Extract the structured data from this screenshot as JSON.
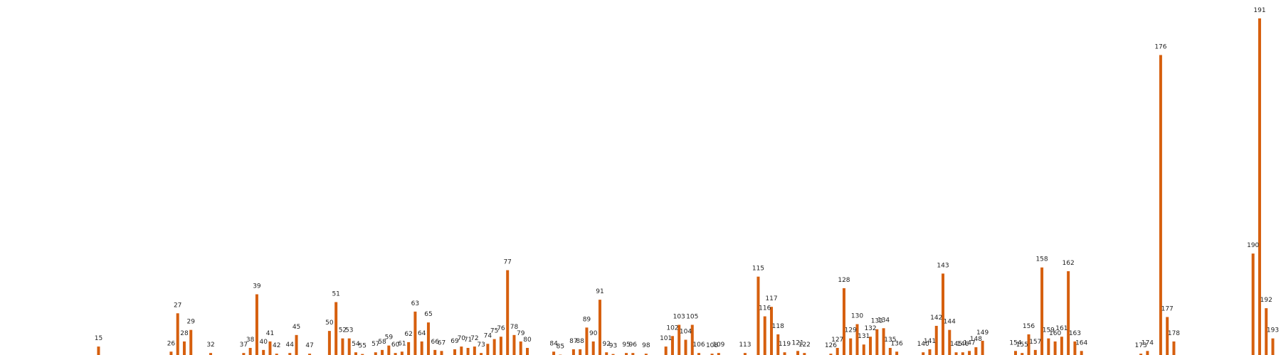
{
  "chart_data": {
    "type": "bar",
    "title": "",
    "xlabel": "",
    "ylabel": "",
    "color": "#d65f0e",
    "grid": false,
    "x_range": [
      0,
      200
    ],
    "ylim": [
      0,
      100
    ],
    "bars": [
      {
        "x": 15,
        "label": "15",
        "value": 2.7
      },
      {
        "x": 26,
        "label": "26",
        "value": 1.2
      },
      {
        "x": 27,
        "label": "27",
        "value": 12.5
      },
      {
        "x": 28,
        "label": "28",
        "value": 4.2
      },
      {
        "x": 29,
        "label": "29",
        "value": 7.6
      },
      {
        "x": 32,
        "label": "32",
        "value": 0.8
      },
      {
        "x": 37,
        "label": "37",
        "value": 0.8
      },
      {
        "x": 38,
        "label": "38",
        "value": 2.3
      },
      {
        "x": 39,
        "label": "39",
        "value": 18.1
      },
      {
        "x": 40,
        "label": "40",
        "value": 1.7
      },
      {
        "x": 41,
        "label": "41",
        "value": 4.2
      },
      {
        "x": 42,
        "label": "42",
        "value": 0.6
      },
      {
        "x": 44,
        "label": "44",
        "value": 0.8
      },
      {
        "x": 45,
        "label": "45",
        "value": 6.1
      },
      {
        "x": 47,
        "label": "47",
        "value": 0.6
      },
      {
        "x": 50,
        "label": "50",
        "value": 7.3
      },
      {
        "x": 51,
        "label": "51",
        "value": 15.8
      },
      {
        "x": 52,
        "label": "52",
        "value": 5.1
      },
      {
        "x": 53,
        "label": "53",
        "value": 5.1
      },
      {
        "x": 54,
        "label": "54",
        "value": 1.0
      },
      {
        "x": 55,
        "label": "55",
        "value": 0.5
      },
      {
        "x": 57,
        "label": "57",
        "value": 1.0
      },
      {
        "x": 58,
        "label": "58",
        "value": 1.7
      },
      {
        "x": 59,
        "label": "59",
        "value": 3.0
      },
      {
        "x": 60,
        "label": "60",
        "value": 0.8
      },
      {
        "x": 61,
        "label": "61",
        "value": 1.2
      },
      {
        "x": 62,
        "label": "62",
        "value": 4.0
      },
      {
        "x": 63,
        "label": "63",
        "value": 13.0
      },
      {
        "x": 64,
        "label": "64",
        "value": 4.2
      },
      {
        "x": 65,
        "label": "65",
        "value": 9.8
      },
      {
        "x": 66,
        "label": "66",
        "value": 1.7
      },
      {
        "x": 67,
        "label": "67",
        "value": 1.4
      },
      {
        "x": 69,
        "label": "69",
        "value": 1.9
      },
      {
        "x": 70,
        "label": "70",
        "value": 2.7
      },
      {
        "x": 71,
        "label": "71",
        "value": 2.3
      },
      {
        "x": 72,
        "label": "72",
        "value": 2.7
      },
      {
        "x": 73,
        "label": "73",
        "value": 0.8
      },
      {
        "x": 74,
        "label": "74",
        "value": 3.5
      },
      {
        "x": 75,
        "label": "75",
        "value": 4.9
      },
      {
        "x": 76,
        "label": "76",
        "value": 5.6
      },
      {
        "x": 77,
        "label": "77",
        "value": 25.2
      },
      {
        "x": 78,
        "label": "78",
        "value": 6.1
      },
      {
        "x": 79,
        "label": "79",
        "value": 4.2
      },
      {
        "x": 80,
        "label": "80",
        "value": 2.3
      },
      {
        "x": 84,
        "label": "84",
        "value": 1.2
      },
      {
        "x": 85,
        "label": "85",
        "value": 0.3
      },
      {
        "x": 87,
        "label": "87",
        "value": 1.9
      },
      {
        "x": 88,
        "label": "88",
        "value": 1.9
      },
      {
        "x": 89,
        "label": "89",
        "value": 8.3
      },
      {
        "x": 90,
        "label": "90",
        "value": 4.2
      },
      {
        "x": 91,
        "label": "91",
        "value": 16.5
      },
      {
        "x": 92,
        "label": "92",
        "value": 1.0
      },
      {
        "x": 93,
        "label": "93",
        "value": 0.5
      },
      {
        "x": 95,
        "label": "95",
        "value": 0.8
      },
      {
        "x": 96,
        "label": "96",
        "value": 0.8
      },
      {
        "x": 98,
        "label": "98",
        "value": 0.6
      },
      {
        "x": 101,
        "label": "101",
        "value": 2.7
      },
      {
        "x": 102,
        "label": "102",
        "value": 5.8
      },
      {
        "x": 103,
        "label": "103",
        "value": 9.1
      },
      {
        "x": 104,
        "label": "104",
        "value": 4.7
      },
      {
        "x": 105,
        "label": "105",
        "value": 9.1
      },
      {
        "x": 106,
        "label": "106",
        "value": 0.8
      },
      {
        "x": 108,
        "label": "108",
        "value": 0.6
      },
      {
        "x": 109,
        "label": "109",
        "value": 0.8
      },
      {
        "x": 113,
        "label": "113",
        "value": 0.8
      },
      {
        "x": 115,
        "label": "115",
        "value": 23.3
      },
      {
        "x": 116,
        "label": "116",
        "value": 11.6
      },
      {
        "x": 117,
        "label": "117",
        "value": 14.4
      },
      {
        "x": 118,
        "label": "118",
        "value": 6.3
      },
      {
        "x": 119,
        "label": "119",
        "value": 1.0
      },
      {
        "x": 121,
        "label": "121",
        "value": 1.4
      },
      {
        "x": 122,
        "label": "122",
        "value": 0.8
      },
      {
        "x": 126,
        "label": "126",
        "value": 0.6
      },
      {
        "x": 127,
        "label": "127",
        "value": 2.3
      },
      {
        "x": 128,
        "label": "128",
        "value": 19.9
      },
      {
        "x": 129,
        "label": "129",
        "value": 5.1
      },
      {
        "x": 130,
        "label": "130",
        "value": 9.3
      },
      {
        "x": 131,
        "label": "131",
        "value": 3.3
      },
      {
        "x": 132,
        "label": "132",
        "value": 5.6
      },
      {
        "x": 133,
        "label": "133",
        "value": 7.8
      },
      {
        "x": 134,
        "label": "134",
        "value": 8.1
      },
      {
        "x": 135,
        "label": "135",
        "value": 2.3
      },
      {
        "x": 136,
        "label": "136",
        "value": 1.2
      },
      {
        "x": 140,
        "label": "140",
        "value": 1.0
      },
      {
        "x": 141,
        "label": "141",
        "value": 1.9
      },
      {
        "x": 142,
        "label": "142",
        "value": 8.8
      },
      {
        "x": 143,
        "label": "143",
        "value": 24.2
      },
      {
        "x": 144,
        "label": "144",
        "value": 7.6
      },
      {
        "x": 145,
        "label": "145",
        "value": 1.0
      },
      {
        "x": 146,
        "label": "146",
        "value": 1.0
      },
      {
        "x": 147,
        "label": "147",
        "value": 1.4
      },
      {
        "x": 148,
        "label": "148",
        "value": 2.5
      },
      {
        "x": 149,
        "label": "149",
        "value": 4.4
      },
      {
        "x": 154,
        "label": "154",
        "value": 1.4
      },
      {
        "x": 155,
        "label": "155",
        "value": 0.8
      },
      {
        "x": 156,
        "label": "156",
        "value": 6.3
      },
      {
        "x": 157,
        "label": "157",
        "value": 1.7
      },
      {
        "x": 158,
        "label": "158",
        "value": 26.0
      },
      {
        "x": 159,
        "label": "159",
        "value": 5.1
      },
      {
        "x": 160,
        "label": "160",
        "value": 4.2
      },
      {
        "x": 161,
        "label": "161",
        "value": 5.6
      },
      {
        "x": 162,
        "label": "162",
        "value": 24.9
      },
      {
        "x": 163,
        "label": "163",
        "value": 4.2
      },
      {
        "x": 164,
        "label": "164",
        "value": 1.4
      },
      {
        "x": 173,
        "label": "173",
        "value": 0.6
      },
      {
        "x": 174,
        "label": "174",
        "value": 1.4
      },
      {
        "x": 176,
        "label": "176",
        "value": 88.6
      },
      {
        "x": 177,
        "label": "177",
        "value": 11.4
      },
      {
        "x": 178,
        "label": "178",
        "value": 4.2
      },
      {
        "x": 190,
        "label": "190",
        "value": 30.1
      },
      {
        "x": 191,
        "label": "191",
        "value": 99.4
      },
      {
        "x": 192,
        "label": "192",
        "value": 14.0
      },
      {
        "x": 193,
        "label": "193",
        "value": 5.1
      }
    ]
  }
}
